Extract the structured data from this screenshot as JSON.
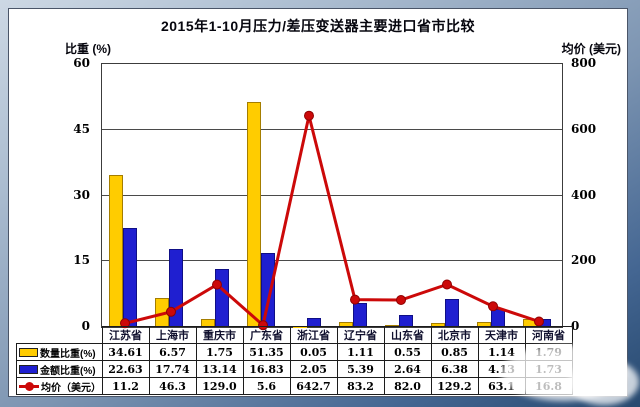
{
  "title": "2015年1-10月压力/差压变送器主要进口省市比较",
  "left_axis_label": "比重 (%)",
  "right_axis_label": "均价 (美元)",
  "colors": {
    "qty_bar": "#ffcc00",
    "amount_bar": "#1f1fd0",
    "price_line": "#cc0909",
    "grid": "#4a4a4a"
  },
  "chart_data": {
    "type": "bar+line",
    "categories": [
      "江苏省",
      "上海市",
      "重庆市",
      "广东省",
      "浙江省",
      "辽宁省",
      "山东省",
      "北京市",
      "天津市",
      "河南省"
    ],
    "series": [
      {
        "name": "数量比重(%)",
        "type": "bar",
        "axis": "left",
        "color": "#ffcc00",
        "values": [
          "34.61",
          "6.57",
          "1.75",
          "51.35",
          "0.05",
          "1.11",
          "0.55",
          "0.85",
          "1.14",
          "1.79"
        ]
      },
      {
        "name": "金额比重(%)",
        "type": "bar",
        "axis": "left",
        "color": "#1f1fd0",
        "values": [
          "22.63",
          "17.74",
          "13.14",
          "16.83",
          "2.05",
          "5.39",
          "2.64",
          "6.38",
          "4.13",
          "1.73"
        ]
      },
      {
        "name": "均价（美元）",
        "type": "line",
        "axis": "right",
        "color": "#cc0909",
        "values": [
          "11.2",
          "46.3",
          "129.0",
          "5.6",
          "642.7",
          "83.2",
          "82.0",
          "129.2",
          "63.1",
          "16.8"
        ]
      }
    ],
    "left_axis": {
      "min": 0,
      "max": 60,
      "ticks": [
        0,
        15,
        30,
        45,
        60
      ]
    },
    "right_axis": {
      "min": 0,
      "max": 800,
      "ticks": [
        0,
        200,
        400,
        600,
        800
      ]
    },
    "grid": true,
    "legend_position": "table-left-column"
  }
}
